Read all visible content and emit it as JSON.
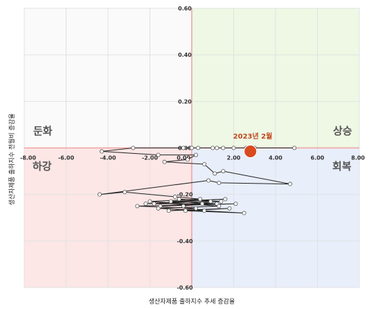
{
  "chart_data": {
    "type": "scatter",
    "title": "",
    "xlabel": "생산자제품 출하지수 추세 증감율",
    "ylabel": "생산자제품 출하지수 전월비 증감율",
    "xlim": [
      -8,
      8
    ],
    "ylim": [
      -0.6,
      0.6
    ],
    "x_ticks": [
      "-8.00",
      "-6.00",
      "-4.00",
      "-2.00",
      "0.00",
      "2.00",
      "4.00",
      "6.00",
      "8.00"
    ],
    "y_ticks": [
      "0.60",
      "0.40",
      "0.20",
      "0.00",
      "-0.20",
      "-0.40",
      "-0.60"
    ],
    "grid": true,
    "quadrants": {
      "top_left": "둔화",
      "top_right": "상승",
      "bottom_left": "하강",
      "bottom_right": "회복"
    },
    "quadrant_colors": {
      "top_left": "#fafafa",
      "top_right": "#eef8e4",
      "bottom_left": "#fce6e6",
      "bottom_right": "#e8eefa"
    },
    "series": [
      {
        "points": [
          [
            -0.4,
            -0.25
          ],
          [
            0.5,
            -0.24
          ],
          [
            -1.8,
            -0.24
          ],
          [
            1.2,
            -0.24
          ],
          [
            -1.0,
            -0.23
          ],
          [
            1.6,
            -0.22
          ],
          [
            -2.2,
            -0.24
          ],
          [
            0.9,
            -0.23
          ],
          [
            -0.6,
            -0.22
          ],
          [
            1.4,
            -0.23
          ],
          [
            -1.5,
            -0.25
          ],
          [
            2.1,
            -0.24
          ],
          [
            -2.6,
            -0.25
          ],
          [
            0.2,
            -0.26
          ],
          [
            -1.1,
            -0.27
          ],
          [
            1.8,
            -0.26
          ],
          [
            -0.3,
            -0.27
          ],
          [
            2.5,
            -0.28
          ],
          [
            0.6,
            -0.27
          ],
          [
            -1.6,
            -0.26
          ],
          [
            1.3,
            -0.25
          ],
          [
            -2.0,
            -0.23
          ],
          [
            0.4,
            -0.22
          ],
          [
            -0.8,
            -0.21
          ],
          [
            -3.2,
            -0.19
          ],
          [
            -4.4,
            -0.2
          ],
          [
            0.8,
            -0.14
          ],
          [
            1.3,
            -0.15
          ],
          [
            4.7,
            -0.155
          ],
          [
            1.5,
            -0.1
          ],
          [
            1.1,
            -0.11
          ],
          [
            0.6,
            -0.07
          ],
          [
            -1.3,
            -0.06
          ],
          [
            -0.2,
            -0.05
          ],
          [
            0.2,
            -0.03
          ],
          [
            -1.6,
            -0.03
          ],
          [
            -4.3,
            -0.015
          ],
          [
            -2.8,
            0.0
          ],
          [
            0.3,
            0.0
          ],
          [
            1.0,
            0.0
          ],
          [
            -0.4,
            0.0
          ],
          [
            2.0,
            0.0
          ],
          [
            1.5,
            0.0
          ],
          [
            4.9,
            0.0
          ],
          [
            3.0,
            0.0
          ],
          [
            0.0,
            0.0
          ],
          [
            1.2,
            0.0
          ],
          [
            2.6,
            0.0
          ]
        ]
      }
    ],
    "highlight": {
      "label": "2023년 2월",
      "x": 2.8,
      "y": -0.015,
      "color": "#d94a1e"
    },
    "colors": {
      "line": "#222222",
      "marker_fill": "#ffffff",
      "marker_stroke": "#555555"
    }
  }
}
